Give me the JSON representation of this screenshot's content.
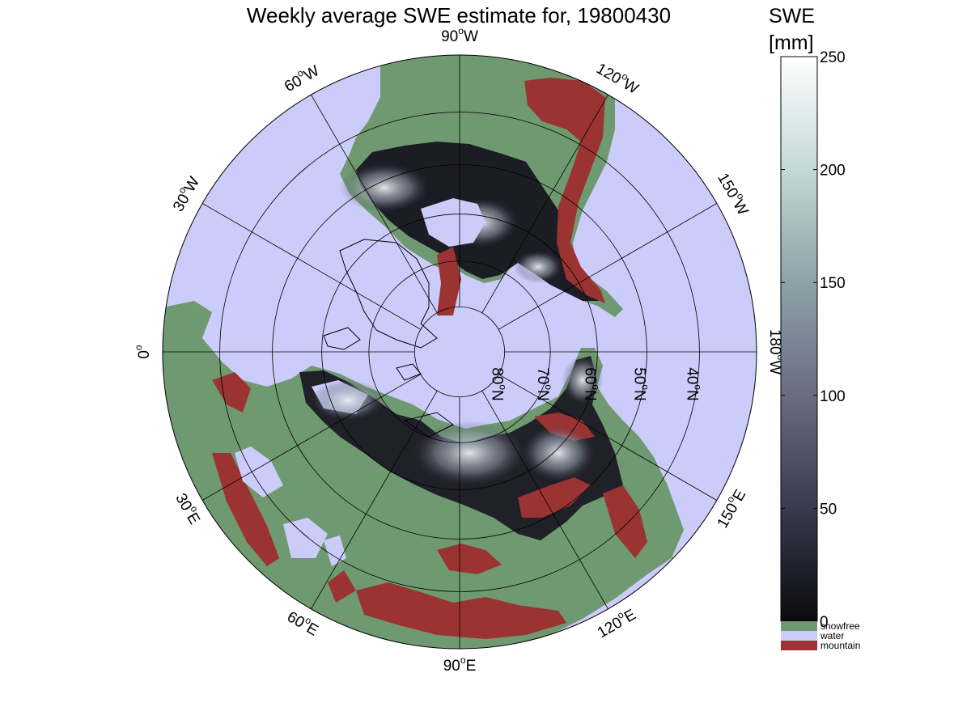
{
  "title": "Weekly average SWE estimate for, 19800430",
  "colorbar": {
    "title_line1": "SWE",
    "title_line2": "[mm]",
    "min": 0,
    "max": 250,
    "ticks": [
      "250",
      "200",
      "150",
      "100",
      "50",
      "0"
    ],
    "tick_values": [
      250,
      200,
      150,
      100,
      50,
      0
    ],
    "gradient": [
      "#0a0a0e",
      "#3a3a4e",
      "#6a6c82",
      "#8ea2a8",
      "#c4d8d6",
      "#ffffff"
    ]
  },
  "legend": [
    {
      "label": "snowfree",
      "color": "#6f9970"
    },
    {
      "label": "water",
      "color": "#ccccfa"
    },
    {
      "label": "mountain",
      "color": "#9b3332"
    }
  ],
  "map": {
    "projection": "north polar stereographic",
    "colors": {
      "water": "#ccccfa",
      "land": "#6f9970",
      "mountain": "#9b3332",
      "snow_low": "#15151c",
      "snow_high": "#e6eeee"
    },
    "lon_labels": [
      {
        "lon": -90,
        "base": "90",
        "sup": "o",
        "dir": "W"
      },
      {
        "lon": -120,
        "base": "120",
        "sup": "o",
        "dir": "W"
      },
      {
        "lon": -150,
        "base": "150",
        "sup": "o",
        "dir": "W"
      },
      {
        "lon": 180,
        "base": "180",
        "sup": "o",
        "dir": "W"
      },
      {
        "lon": 150,
        "base": "150",
        "sup": "o",
        "dir": "E"
      },
      {
        "lon": 120,
        "base": "120",
        "sup": "o",
        "dir": "E"
      },
      {
        "lon": 90,
        "base": "90",
        "sup": "o",
        "dir": "E"
      },
      {
        "lon": 60,
        "base": "60",
        "sup": "o",
        "dir": "E"
      },
      {
        "lon": 30,
        "base": "30",
        "sup": "o",
        "dir": "E"
      },
      {
        "lon": 0,
        "base": "0",
        "sup": "o",
        "dir": ""
      },
      {
        "lon": -30,
        "base": "30",
        "sup": "o",
        "dir": "W"
      },
      {
        "lon": -60,
        "base": "60",
        "sup": "o",
        "dir": "W"
      }
    ],
    "lat_labels": [
      {
        "lat": 80,
        "base": "80",
        "sup": "o",
        "dir": "N"
      },
      {
        "lat": 70,
        "base": "70",
        "sup": "o",
        "dir": "N"
      },
      {
        "lat": 60,
        "base": "60",
        "sup": "o",
        "dir": "N"
      },
      {
        "lat": 50,
        "base": "50",
        "sup": "o",
        "dir": "N"
      },
      {
        "lat": 40,
        "base": "40",
        "sup": "o",
        "dir": "N"
      }
    ]
  }
}
